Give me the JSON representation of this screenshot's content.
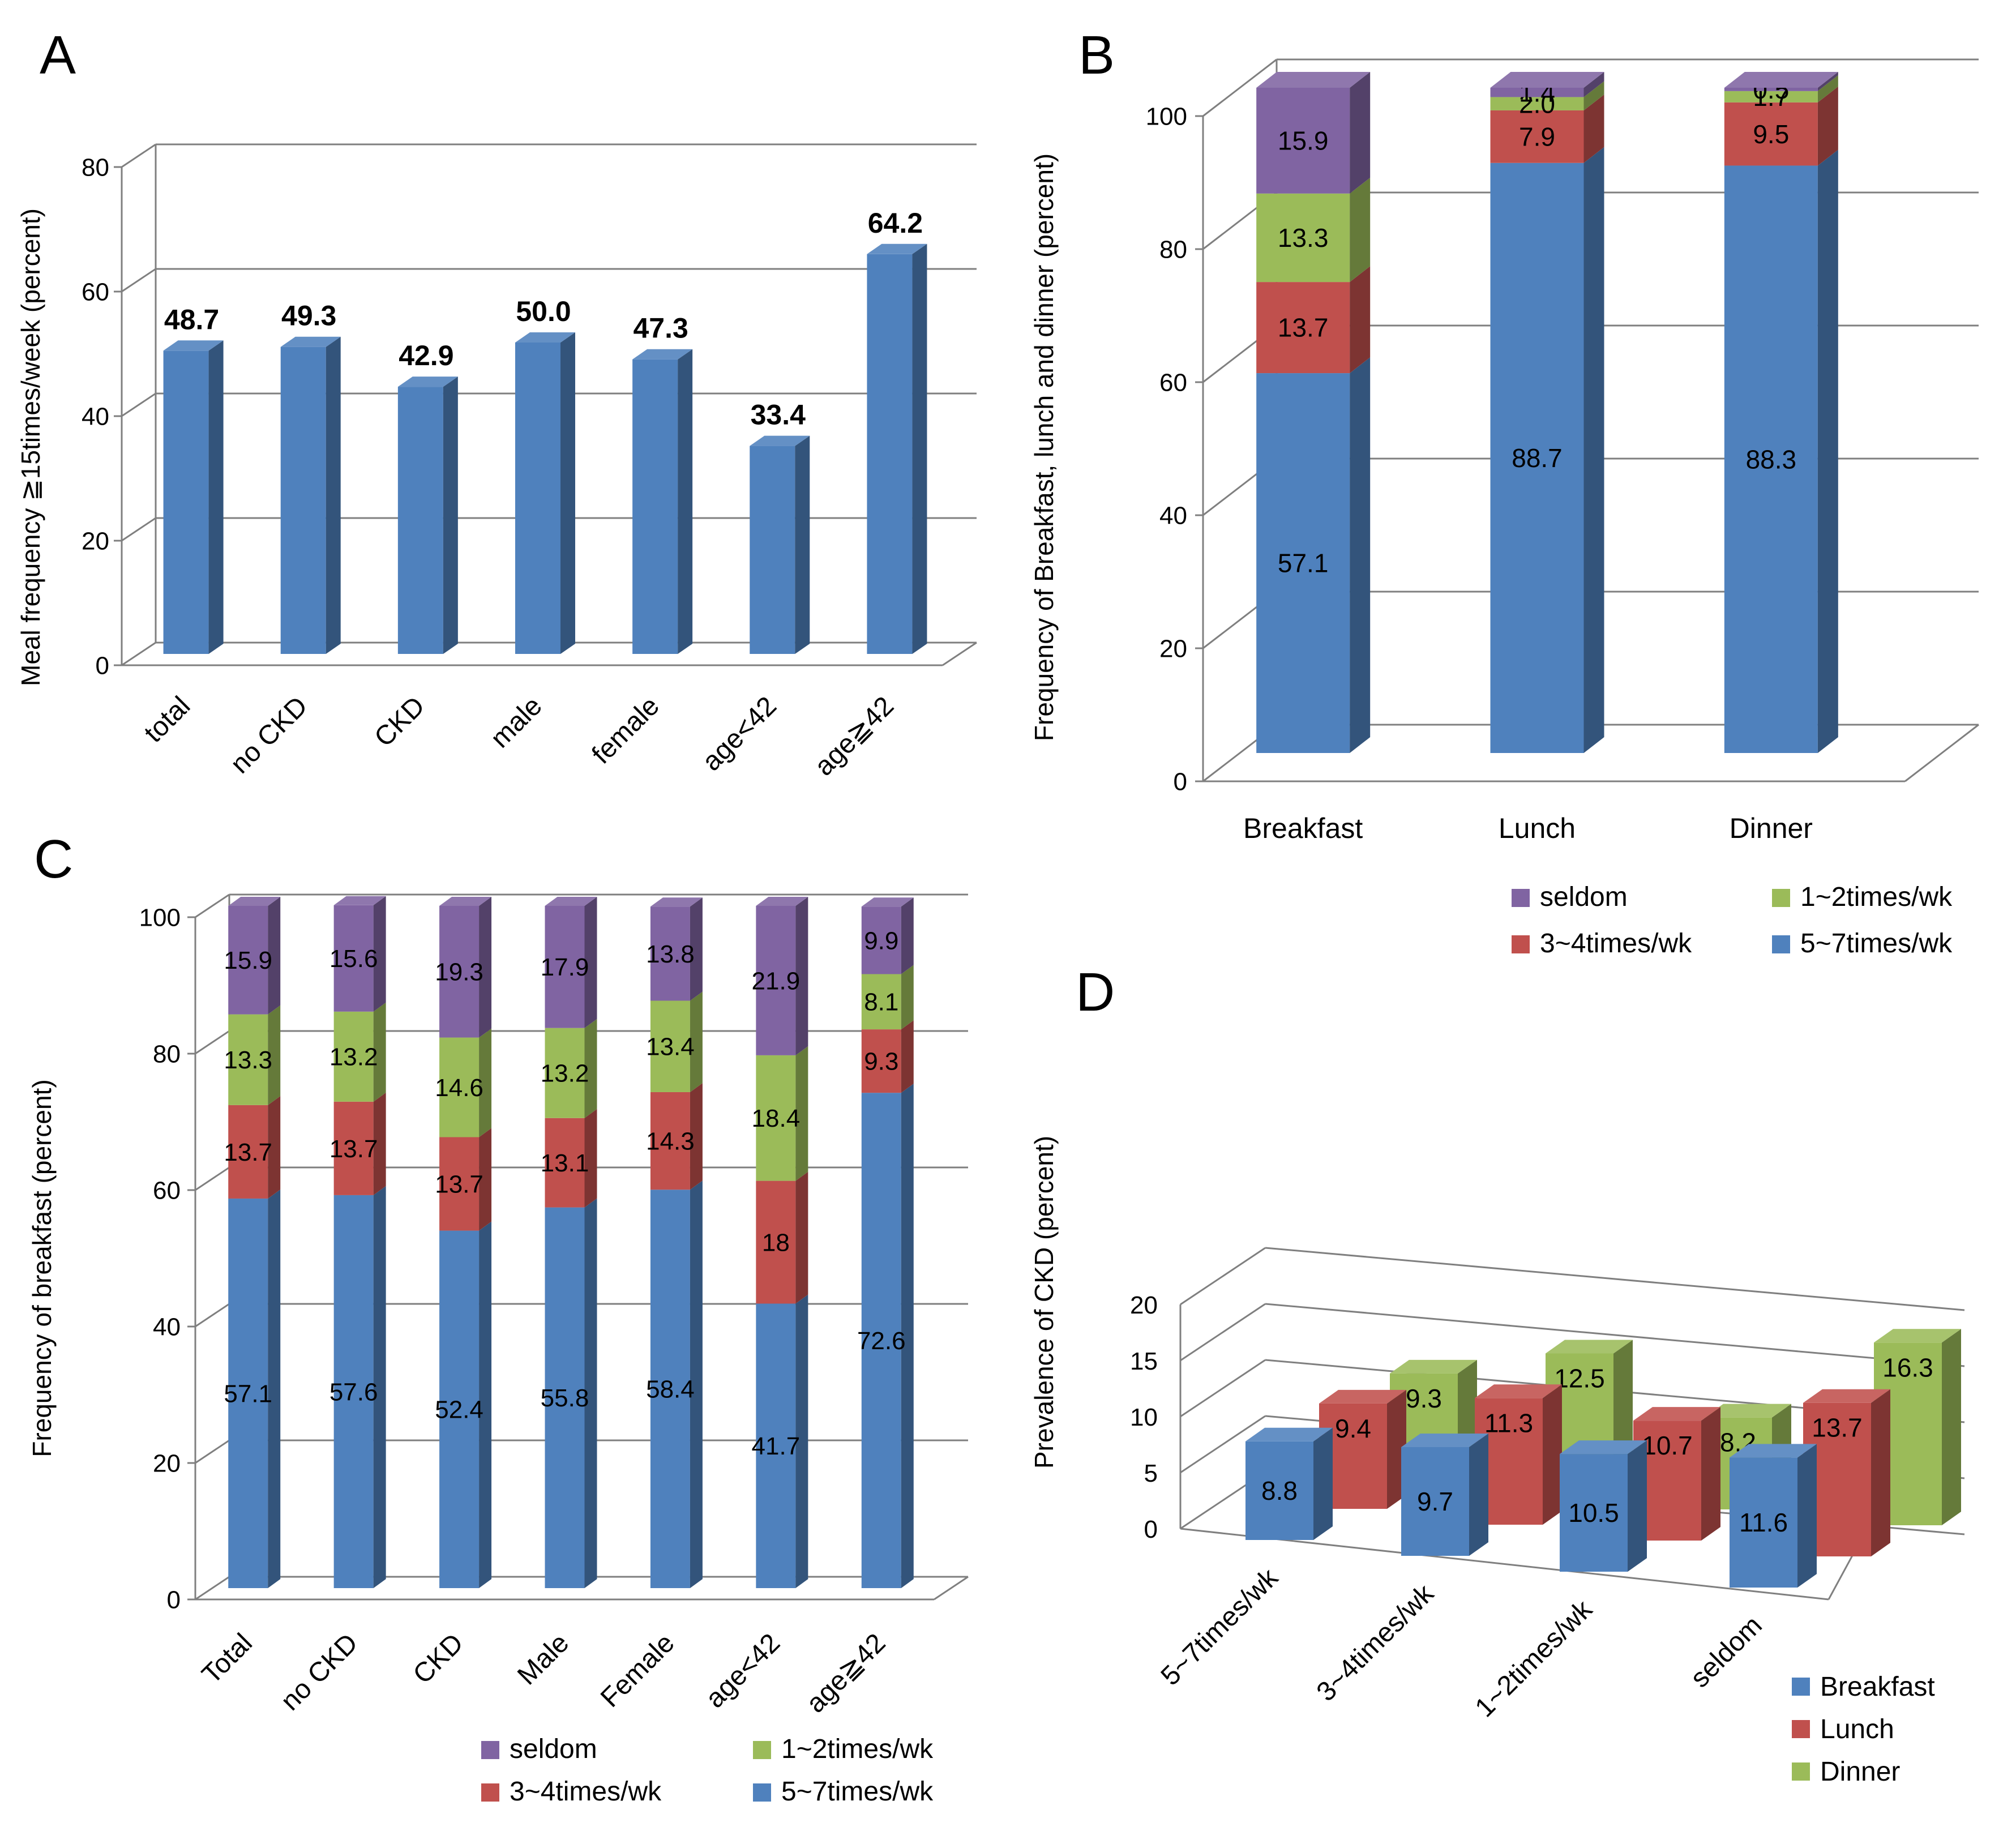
{
  "colors": {
    "blue": "#4F81BD",
    "red": "#C0504D",
    "green": "#9BBB59",
    "purple": "#8064A2",
    "grid": "#7F7F7F",
    "text": "#000000"
  },
  "chart_data": [
    {
      "panel": "A",
      "type": "bar",
      "title": "",
      "ylabel": "Meal frequency ≧15times/week (percent)",
      "xlabel": "",
      "categories": [
        "total",
        "no CKD",
        "CKD",
        "male",
        "female",
        "age<42",
        "age≧42"
      ],
      "values": [
        48.7,
        49.3,
        42.9,
        50.0,
        47.3,
        33.4,
        64.2
      ],
      "data_labels": [
        "48.7",
        "49.3",
        "42.9",
        "50.0",
        "47.3",
        "33.4",
        "64.2"
      ],
      "yticks": [
        "0",
        "20",
        "40",
        "60",
        "80"
      ],
      "ylim": [
        0,
        80
      ]
    },
    {
      "panel": "B",
      "type": "bar",
      "stacked": true,
      "ylabel": "Frequency  of  Breakfast, lunch and dinner (percent)",
      "categories": [
        "Breakfast",
        "Lunch",
        "Dinner"
      ],
      "series": [
        {
          "name": "5~7times/wk",
          "color": "#4F81BD",
          "values": [
            57.1,
            88.7,
            88.3
          ],
          "labels": [
            "57.1",
            "88.7",
            "88.3"
          ]
        },
        {
          "name": "3~4times/wk",
          "color": "#C0504D",
          "values": [
            13.7,
            7.9,
            9.5
          ],
          "labels": [
            "13.7",
            "7.9",
            "9.5"
          ]
        },
        {
          "name": "1~2times/wk",
          "color": "#9BBB59",
          "values": [
            13.3,
            2.0,
            1.7
          ],
          "labels": [
            "13.3",
            "2.0",
            "1.7"
          ]
        },
        {
          "name": "seldom",
          "color": "#8064A2",
          "values": [
            15.9,
            1.4,
            0.5
          ],
          "labels": [
            "15.9",
            "1.4",
            "0.5"
          ]
        }
      ],
      "legend": [
        {
          "name": "seldom",
          "color": "#8064A2"
        },
        {
          "name": "1~2times/wk",
          "color": "#9BBB59"
        },
        {
          "name": "3~4times/wk",
          "color": "#C0504D"
        },
        {
          "name": "5~7times/wk",
          "color": "#4F81BD"
        }
      ],
      "yticks": [
        "0",
        "20",
        "40",
        "60",
        "80",
        "100"
      ],
      "ylim": [
        0,
        100
      ]
    },
    {
      "panel": "C",
      "type": "bar",
      "stacked": true,
      "ylabel": "Frequency  of  breakfast (percent)",
      "categories": [
        "Total",
        "no CKD",
        "CKD",
        "Male",
        "Female",
        "age<42",
        "age≧42"
      ],
      "series": [
        {
          "name": "5~7times/wk",
          "color": "#4F81BD",
          "values": [
            57.1,
            57.6,
            52.4,
            55.8,
            58.4,
            41.7,
            72.6
          ],
          "labels": [
            "57.1",
            "57.6",
            "52.4",
            "55.8",
            "58.4",
            "41.7",
            "72.6"
          ]
        },
        {
          "name": "3~4times/wk",
          "color": "#C0504D",
          "values": [
            13.7,
            13.7,
            13.7,
            13.1,
            14.3,
            18,
            9.3
          ],
          "labels": [
            "13.7",
            "13.7",
            "13.7",
            "13.1",
            "14.3",
            "18",
            "9.3"
          ]
        },
        {
          "name": "1~2times/wk",
          "color": "#9BBB59",
          "values": [
            13.3,
            13.2,
            14.6,
            13.2,
            13.4,
            18.4,
            8.1
          ],
          "labels": [
            "13.3",
            "13.2",
            "14.6",
            "13.2",
            "13.4",
            "18.4",
            "8.1"
          ]
        },
        {
          "name": "seldom",
          "color": "#8064A2",
          "values": [
            15.9,
            15.6,
            19.3,
            17.9,
            13.8,
            21.9,
            9.9
          ],
          "labels": [
            "15.9",
            "15.6",
            "19.3",
            "17.9",
            "13.8",
            "21.9",
            "9.9"
          ]
        }
      ],
      "legend": [
        {
          "name": "seldom",
          "color": "#8064A2"
        },
        {
          "name": "1~2times/wk",
          "color": "#9BBB59"
        },
        {
          "name": "3~4times/wk",
          "color": "#C0504D"
        },
        {
          "name": "5~7times/wk",
          "color": "#4F81BD"
        }
      ],
      "yticks": [
        "0",
        "20",
        "40",
        "60",
        "80",
        "100"
      ],
      "ylim": [
        0,
        100
      ]
    },
    {
      "panel": "D",
      "type": "bar",
      "subtype": "3d-clustered",
      "ylabel": "Prevalence  of  CKD (percent)",
      "categories": [
        "5~7times/wk",
        "3~4times/wk",
        "1~2times/wk",
        "seldom"
      ],
      "series": [
        {
          "name": "Breakfast",
          "color": "#4F81BD",
          "values": [
            8.8,
            9.7,
            10.5,
            11.6
          ],
          "labels": [
            "8.8",
            "9.7",
            "10.5",
            "11.6"
          ]
        },
        {
          "name": "Lunch",
          "color": "#C0504D",
          "values": [
            9.4,
            11.3,
            10.7,
            13.7
          ],
          "labels": [
            "9.4",
            "11.3",
            "10.7",
            "13.7"
          ]
        },
        {
          "name": "Dinner",
          "color": "#9BBB59",
          "values": [
            9.3,
            12.5,
            8.2,
            16.3
          ],
          "labels": [
            "9.3",
            "12.5",
            "8.2",
            "16.3"
          ]
        }
      ],
      "yticks": [
        "0",
        "5",
        "10",
        "15",
        "20"
      ],
      "ylim": [
        0,
        20
      ]
    }
  ]
}
